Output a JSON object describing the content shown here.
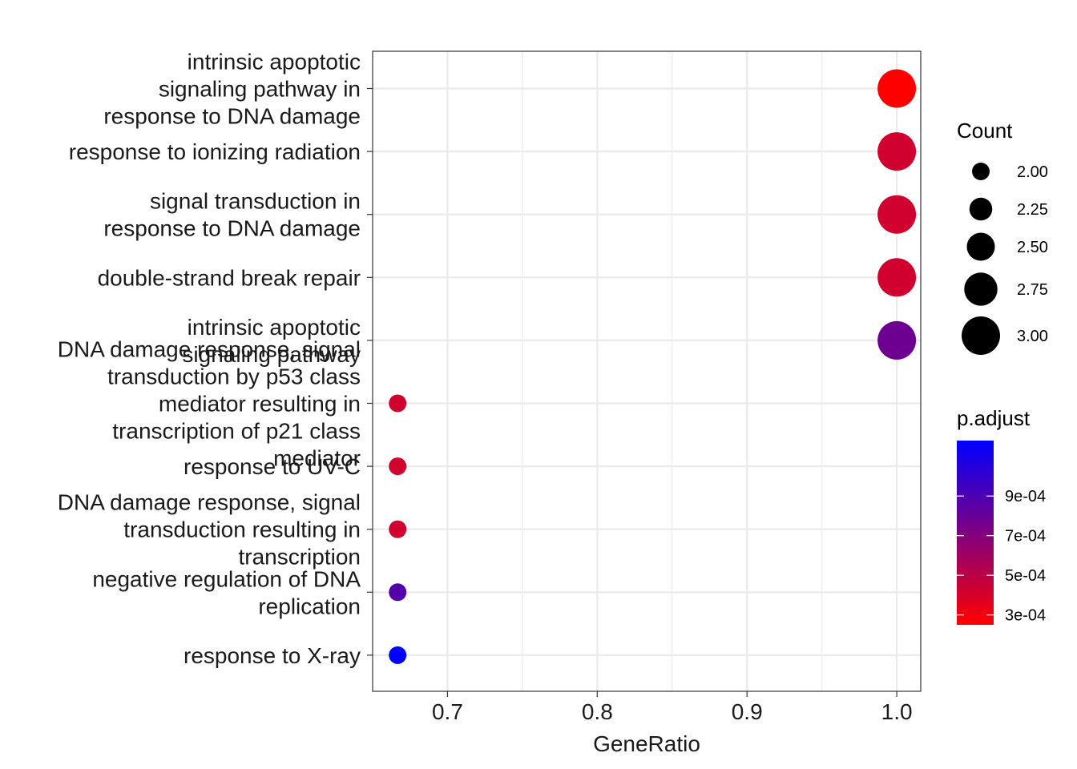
{
  "chart_data": {
    "type": "scatter",
    "title": "",
    "xlabel": "GeneRatio",
    "ylabel": "",
    "xlim": [
      0.65,
      1.016
    ],
    "x_ticks": [
      "0.7",
      "0.8",
      "0.9",
      "1.0"
    ],
    "x_tick_values": [
      0.7,
      0.8,
      0.9,
      1.0
    ],
    "grid": true,
    "legend_placement": "right",
    "categories": [
      "intrinsic apoptotic signaling pathway in response to DNA damage",
      "response to ionizing radiation",
      "signal transduction in response to DNA damage",
      "double-strand break repair",
      "intrinsic apoptotic signaling pathway",
      "DNA damage response, signal transduction by p53 class mediator resulting in transcription of p21 class mediator",
      "response to UV-C",
      "DNA damage response, signal transduction resulting in transcription",
      "negative regulation of DNA replication",
      "response to X-ray"
    ],
    "category_lines": [
      [
        "intrinsic apoptotic",
        "signaling pathway in",
        "response to DNA damage"
      ],
      [
        "response to ionizing radiation"
      ],
      [
        "signal transduction in",
        "response to DNA damage"
      ],
      [
        "double-strand break repair"
      ],
      [
        "intrinsic apoptotic",
        "signaling pathway"
      ],
      [
        "DNA damage response, signal",
        "transduction by p53 class",
        "mediator resulting in",
        "transcription of p21 class",
        "mediator"
      ],
      [
        "response to UV-C"
      ],
      [
        "DNA damage response, signal",
        "transduction resulting in",
        "transcription"
      ],
      [
        "negative regulation of DNA",
        "replication"
      ],
      [
        "response to X-ray"
      ]
    ],
    "series": [
      {
        "gene_ratio": [
          1.0,
          1.0,
          1.0,
          1.0,
          1.0,
          0.6667,
          0.6667,
          0.6667,
          0.6667,
          0.6667
        ],
        "count": [
          3,
          3,
          3,
          3,
          3,
          2,
          2,
          2,
          2,
          2
        ],
        "p_adjust": [
          0.00025,
          0.00042,
          0.00042,
          0.00042,
          0.00078,
          0.00042,
          0.00042,
          0.00042,
          0.00087,
          0.00118
        ]
      }
    ],
    "size_legend": {
      "title": "Count",
      "values": [
        2.0,
        2.25,
        2.5,
        2.75,
        3.0
      ],
      "labels": [
        "2.00",
        "2.25",
        "2.50",
        "2.75",
        "3.00"
      ]
    },
    "color_legend": {
      "title": "p.adjust",
      "range": [
        0.00025,
        0.00118
      ],
      "ticks": [
        0.0003,
        0.0005,
        0.0007,
        0.0009
      ],
      "labels": [
        "3e-04",
        "5e-04",
        "7e-04",
        "9e-04"
      ],
      "low_color": "#ff0000",
      "high_color": "#0000ff"
    },
    "colors": {
      "grid": "#ebebeb",
      "panel_border": "#333333",
      "text": "#000000",
      "point_legend": "#000000"
    }
  }
}
